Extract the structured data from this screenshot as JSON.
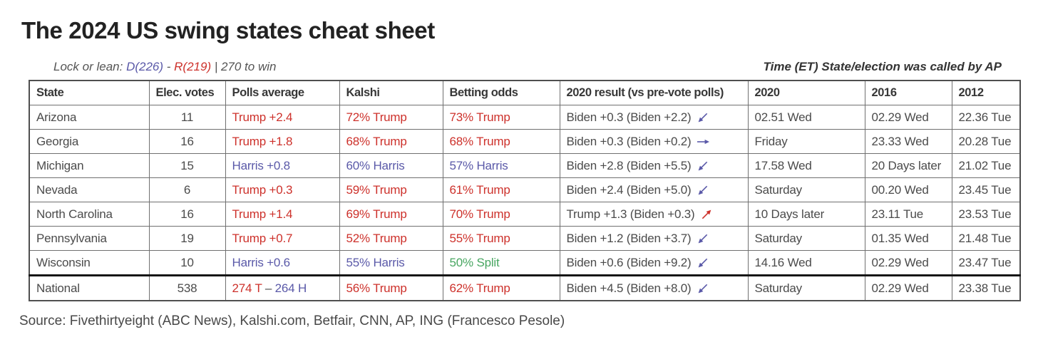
{
  "title": "The 2024 US swing states cheat sheet",
  "subtitle": {
    "prefix": "Lock or lean: ",
    "dem": "D(226)",
    "sep": " - ",
    "rep": "R(219)",
    "suffix": " | 270 to win",
    "right_note": "Time (ET) State/election was called by AP"
  },
  "colors": {
    "red": "#cd312b",
    "blue": "#5a59a8",
    "green": "#48a661",
    "dark": "#4b4b4b"
  },
  "table": {
    "columns": [
      "State",
      "Elec. votes",
      "Polls average",
      "Kalshi",
      "Betting odds",
      "2020 result (vs pre-vote polls)",
      "2020",
      "2016",
      "2012"
    ],
    "rows": [
      {
        "state": "Arizona",
        "ev": "11",
        "polls": [
          {
            "text": "Trump +2.4",
            "color": "red"
          }
        ],
        "kalshi": {
          "text": "72% Trump",
          "color": "red"
        },
        "betting": {
          "text": "73% Trump",
          "color": "red"
        },
        "result": {
          "text": "Biden +0.3 (Biden +2.2)",
          "trend": "down-left",
          "trend_color": "blue"
        },
        "y2020": "02.51 Wed",
        "y2016": "02.29 Wed",
        "y2012": "22.36 Tue"
      },
      {
        "state": "Georgia",
        "ev": "16",
        "polls": [
          {
            "text": "Trump +1.8",
            "color": "red"
          }
        ],
        "kalshi": {
          "text": "68% Trump",
          "color": "red"
        },
        "betting": {
          "text": "68% Trump",
          "color": "red"
        },
        "result": {
          "text": "Biden +0.3 (Biden +0.2)",
          "trend": "right",
          "trend_color": "blue"
        },
        "y2020": "Friday",
        "y2016": "23.33 Wed",
        "y2012": "20.28 Tue"
      },
      {
        "state": "Michigan",
        "ev": "15",
        "polls": [
          {
            "text": "Harris +0.8",
            "color": "blue"
          }
        ],
        "kalshi": {
          "text": "60% Harris",
          "color": "blue"
        },
        "betting": {
          "text": "57% Harris",
          "color": "blue"
        },
        "result": {
          "text": "Biden +2.8 (Biden +5.5)",
          "trend": "down-left",
          "trend_color": "blue"
        },
        "y2020": "17.58 Wed",
        "y2016": "20 Days later",
        "y2012": "21.02 Tue"
      },
      {
        "state": "Nevada",
        "ev": "6",
        "polls": [
          {
            "text": "Trump +0.3",
            "color": "red"
          }
        ],
        "kalshi": {
          "text": "59% Trump",
          "color": "red"
        },
        "betting": {
          "text": "61% Trump",
          "color": "red"
        },
        "result": {
          "text": "Biden +2.4 (Biden +5.0)",
          "trend": "down-left",
          "trend_color": "blue"
        },
        "y2020": "Saturday",
        "y2016": "00.20 Wed",
        "y2012": "23.45 Tue"
      },
      {
        "state": "North Carolina",
        "ev": "16",
        "polls": [
          {
            "text": "Trump +1.4",
            "color": "red"
          }
        ],
        "kalshi": {
          "text": "69% Trump",
          "color": "red"
        },
        "betting": {
          "text": "70% Trump",
          "color": "red"
        },
        "result": {
          "text": "Trump +1.3 (Biden +0.3)",
          "trend": "up-right",
          "trend_color": "red"
        },
        "y2020": "10 Days later",
        "y2016": "23.11 Tue",
        "y2012": "23.53 Tue"
      },
      {
        "state": "Pennsylvania",
        "ev": "19",
        "polls": [
          {
            "text": "Trump +0.7",
            "color": "red"
          }
        ],
        "kalshi": {
          "text": "52% Trump",
          "color": "red"
        },
        "betting": {
          "text": "55% Trump",
          "color": "red"
        },
        "result": {
          "text": "Biden +1.2 (Biden +3.7)",
          "trend": "down-left",
          "trend_color": "blue"
        },
        "y2020": "Saturday",
        "y2016": "01.35 Wed",
        "y2012": "21.48 Tue"
      },
      {
        "state": "Wisconsin",
        "ev": "10",
        "polls": [
          {
            "text": "Harris +0.6",
            "color": "blue"
          }
        ],
        "kalshi": {
          "text": "55% Harris",
          "color": "blue"
        },
        "betting": {
          "text": "50% Split",
          "color": "green"
        },
        "result": {
          "text": "Biden +0.6 (Biden +9.2)",
          "trend": "down-left",
          "trend_color": "blue"
        },
        "y2020": "14.16 Wed",
        "y2016": "02.29 Wed",
        "y2012": "23.47 Tue"
      },
      {
        "state": "National",
        "ev": "538",
        "is_national": true,
        "polls": [
          {
            "text": "274 T",
            "color": "red"
          },
          {
            "text": " – ",
            "color": "dark"
          },
          {
            "text": "264 H",
            "color": "blue"
          }
        ],
        "kalshi": {
          "text": "56% Trump",
          "color": "red"
        },
        "betting": {
          "text": "62% Trump",
          "color": "red"
        },
        "result": {
          "text": "Biden +4.5 (Biden +8.0)",
          "trend": "down-left",
          "trend_color": "blue"
        },
        "y2020": "Saturday",
        "y2016": "02.29 Wed",
        "y2012": "23.38 Tue"
      }
    ]
  },
  "chart_data": {
    "type": "table",
    "title": "The 2024 US swing states cheat sheet",
    "columns": [
      "State",
      "Elec. votes",
      "Polls average",
      "Kalshi",
      "Betting odds",
      "2020 result (vs pre-vote polls)",
      "2020",
      "2016",
      "2012"
    ],
    "rows": [
      [
        "Arizona",
        "11",
        "Trump +2.4",
        "72% Trump",
        "73% Trump",
        "Biden +0.3 (Biden +2.2) ↙",
        "02.51 Wed",
        "02.29 Wed",
        "22.36 Tue"
      ],
      [
        "Georgia",
        "16",
        "Trump +1.8",
        "68% Trump",
        "68% Trump",
        "Biden +0.3 (Biden +0.2) →",
        "Friday",
        "23.33 Wed",
        "20.28 Tue"
      ],
      [
        "Michigan",
        "15",
        "Harris +0.8",
        "60% Harris",
        "57% Harris",
        "Biden +2.8 (Biden +5.5) ↙",
        "17.58 Wed",
        "20 Days later",
        "21.02 Tue"
      ],
      [
        "Nevada",
        "6",
        "Trump +0.3",
        "59% Trump",
        "61% Trump",
        "Biden +2.4 (Biden +5.0) ↙",
        "Saturday",
        "00.20 Wed",
        "23.45 Tue"
      ],
      [
        "North Carolina",
        "16",
        "Trump +1.4",
        "69% Trump",
        "70% Trump",
        "Trump +1.3 (Biden +0.3) ↗",
        "10 Days later",
        "23.11 Tue",
        "23.53 Tue"
      ],
      [
        "Pennsylvania",
        "19",
        "Trump +0.7",
        "52% Trump",
        "55% Trump",
        "Biden +1.2 (Biden +3.7) ↙",
        "Saturday",
        "01.35 Wed",
        "21.48 Tue"
      ],
      [
        "Wisconsin",
        "10",
        "Harris +0.6",
        "55% Harris",
        "50% Split",
        "Biden +0.6 (Biden +9.2) ↙",
        "14.16 Wed",
        "02.29 Wed",
        "23.47 Tue"
      ],
      [
        "National",
        "538",
        "274 T – 264 H",
        "56% Trump",
        "62% Trump",
        "Biden +4.5 (Biden +8.0) ↙",
        "Saturday",
        "02.29 Wed",
        "23.38 Tue"
      ]
    ]
  },
  "source": "Source: Fivethirtyeight (ABC News), Kalshi.com, Betfair, CNN, AP, ING (Francesco Pesole)"
}
